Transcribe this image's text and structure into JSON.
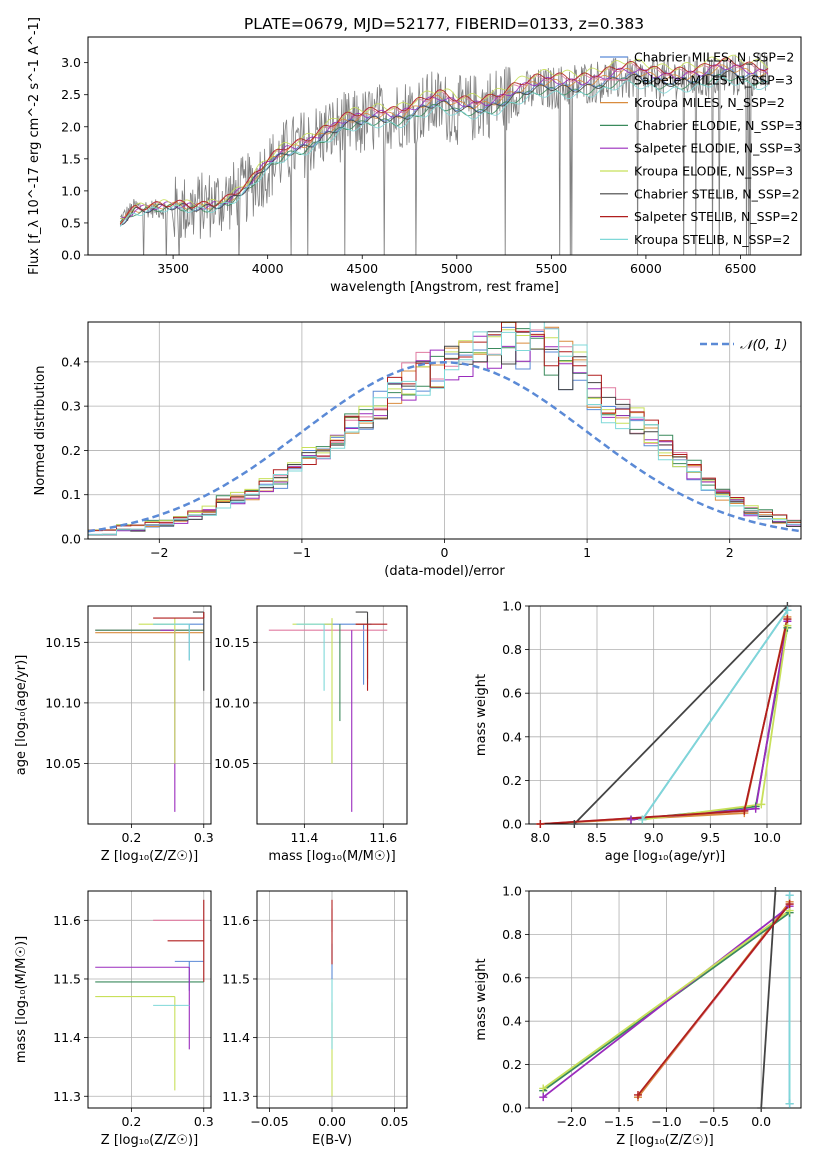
{
  "figure": {
    "title": "PLATE=0679, MJD=52177, FIBERID=0133, z=0.383"
  },
  "colors": {
    "Chabrier MILES": "#5b8ad6",
    "Salpeter MILES": "#e07ba0",
    "Kroupa MILES": "#d98c3e",
    "Chabrier ELODIE": "#3a8a5c",
    "Salpeter ELODIE": "#9a2bbd",
    "Kroupa ELODIE": "#c8e05a",
    "Chabrier STELIB": "#444444",
    "Salpeter STELIB": "#b01e1e",
    "Kroupa STELIB": "#7fd8d8",
    "data": "#808080"
  },
  "chart_data": [
    {
      "type": "line",
      "panel": "spectrum",
      "title": "PLATE=0679, MJD=52177, FIBERID=0133, z=0.383",
      "xlabel": "wavelength [Angstrom, rest frame]",
      "ylabel": "Flux [f_λ 10^-17 erg cm^-2 s^-1 A^-1]",
      "xlim": [
        3050,
        6820
      ],
      "ylim": [
        0,
        3.4
      ],
      "xticks": [
        3500,
        4000,
        4500,
        5000,
        5500,
        6000,
        6500
      ],
      "yticks": [
        0.0,
        0.5,
        1.0,
        1.5,
        2.0,
        2.5,
        3.0
      ],
      "grid": false,
      "legend_position": "top-right",
      "x": [
        3220,
        3300,
        3400,
        3500,
        3600,
        3700,
        3800,
        3900,
        4000,
        4100,
        4200,
        4300,
        4400,
        4500,
        4600,
        4700,
        4800,
        4900,
        5000,
        5100,
        5200,
        5300,
        5400,
        5500,
        5600,
        5700,
        5800,
        5900,
        6000,
        6100,
        6200,
        6300,
        6400,
        6500,
        6600,
        6650
      ],
      "model_base": [
        0.55,
        0.75,
        0.72,
        0.7,
        0.72,
        0.8,
        0.9,
        1.05,
        1.35,
        1.6,
        1.75,
        1.9,
        2.0,
        2.05,
        2.15,
        2.2,
        2.3,
        2.35,
        2.25,
        2.3,
        2.4,
        2.5,
        2.55,
        2.6,
        2.65,
        2.7,
        2.72,
        2.75,
        2.72,
        2.75,
        2.78,
        2.75,
        2.8,
        2.8,
        2.82,
        2.8
      ],
      "series": [
        {
          "name": "Chabrier MILES, N_SSP=2",
          "scale": 1.0
        },
        {
          "name": "Salpeter MILES, N_SSP=3",
          "scale": 1.05
        },
        {
          "name": "Kroupa MILES, N_SSP=2",
          "scale": 1.02
        },
        {
          "name": "Chabrier ELODIE, N_SSP=3",
          "scale": 0.97
        },
        {
          "name": "Salpeter ELODIE, N_SSP=3",
          "scale": 1.03
        },
        {
          "name": "Kroupa ELODIE, N_SSP=3",
          "scale": 1.08
        },
        {
          "name": "Chabrier STELIB, N_SSP=2",
          "scale": 0.99
        },
        {
          "name": "Salpeter STELIB, N_SSP=2",
          "scale": 1.06
        },
        {
          "name": "Kroupa STELIB, N_SSP=2",
          "scale": 0.95
        }
      ]
    },
    {
      "type": "bar",
      "panel": "residual-histogram",
      "xlabel": "(data-model)/error",
      "ylabel": "Normed distribution",
      "xlim": [
        -2.5,
        2.5
      ],
      "ylim": [
        0,
        0.49
      ],
      "xticks": [
        -2,
        -1,
        0,
        1,
        2
      ],
      "yticks": [
        0.0,
        0.1,
        0.2,
        0.3,
        0.4
      ],
      "grid": true,
      "legend_position": "top-right",
      "reference_curve": {
        "name": "𝒩(0, 1)",
        "mean": 0,
        "sigma": 1
      },
      "bin_width": 0.1,
      "bin_start": -2.5,
      "typical_values": [
        0.01,
        0.01,
        0.02,
        0.02,
        0.03,
        0.03,
        0.04,
        0.05,
        0.06,
        0.08,
        0.09,
        0.1,
        0.12,
        0.13,
        0.15,
        0.18,
        0.2,
        0.22,
        0.26,
        0.28,
        0.3,
        0.32,
        0.35,
        0.37,
        0.38,
        0.4,
        0.41,
        0.42,
        0.42,
        0.42,
        0.41,
        0.4,
        0.38,
        0.36,
        0.35,
        0.33,
        0.3,
        0.28,
        0.26,
        0.23,
        0.2,
        0.17,
        0.15,
        0.12,
        0.1,
        0.08,
        0.06,
        0.05,
        0.04,
        0.03
      ]
    },
    {
      "type": "scatter",
      "panel": "age-vs-Z",
      "xlabel": "Z [log₁₀(Z/Z☉)]",
      "ylabel": "age  [log₁₀(age/yr)]",
      "xlim": [
        0.14,
        0.31
      ],
      "ylim": [
        10.0,
        10.18
      ],
      "xticks": [
        0.2,
        0.3
      ],
      "yticks": [
        10.05,
        10.1,
        10.15
      ],
      "grid": true,
      "points": [
        {
          "series": "Chabrier MILES",
          "x": 0.28,
          "y": 10.165,
          "xerr": [
            0.05,
            0.02
          ],
          "yerr": [
            0.03,
            0.0
          ]
        },
        {
          "series": "Salpeter MILES",
          "x": 0.3,
          "y": 10.16,
          "xerr": [
            0.15,
            0.0
          ],
          "yerr": [
            0.0,
            0.0
          ]
        },
        {
          "series": "Kroupa MILES",
          "x": 0.3,
          "y": 10.158,
          "xerr": [
            0.15,
            0.0
          ],
          "yerr": [
            0.0,
            0.0
          ]
        },
        {
          "series": "Chabrier ELODIE",
          "x": 0.3,
          "y": 10.16,
          "xerr": [
            0.15,
            0.0
          ],
          "yerr": [
            0.0,
            0.0
          ]
        },
        {
          "series": "Salpeter ELODIE",
          "x": 0.26,
          "y": 10.16,
          "xerr": [
            0.02,
            0.0
          ],
          "yerr": [
            0.15,
            0.0
          ]
        },
        {
          "series": "Kroupa ELODIE",
          "x": 0.26,
          "y": 10.165,
          "xerr": [
            0.05,
            0.0
          ],
          "yerr": [
            0.115,
            0.005
          ]
        },
        {
          "series": "Chabrier STELIB",
          "x": 0.3,
          "y": 10.175,
          "xerr": [
            0.015,
            0.0
          ],
          "yerr": [
            0.065,
            0.0
          ]
        },
        {
          "series": "Salpeter STELIB",
          "x": 0.3,
          "y": 10.17,
          "xerr": [
            0.07,
            0.0
          ],
          "yerr": [
            0.0,
            0.005
          ]
        },
        {
          "series": "Kroupa STELIB",
          "x": 0.28,
          "y": 10.165,
          "xerr": [
            0.05,
            0.0
          ],
          "yerr": [
            0.03,
            0.0
          ]
        }
      ]
    },
    {
      "type": "scatter",
      "panel": "age-vs-mass",
      "xlabel": "mass [log₁₀(M/M☉)]",
      "ylabel": "",
      "xlim": [
        11.28,
        11.66
      ],
      "ylim": [
        10.0,
        10.18
      ],
      "xticks": [
        11.4,
        11.6
      ],
      "yticks": [
        10.05,
        10.1,
        10.15
      ],
      "grid": true,
      "points": [
        {
          "series": "Chabrier MILES",
          "x": 11.55,
          "y": 10.165,
          "xerr": [
            0.1,
            0.02
          ],
          "yerr": [
            0.05,
            0.0
          ]
        },
        {
          "series": "Salpeter MILES",
          "x": 11.56,
          "y": 10.16,
          "xerr": [
            0.25,
            0.05
          ],
          "yerr": [
            0.0,
            0.0
          ]
        },
        {
          "series": "Kroupa MILES",
          "x": 11.56,
          "y": 10.165,
          "xerr": [
            0.03,
            0.0
          ],
          "yerr": [
            0.05,
            0.005
          ]
        },
        {
          "series": "Chabrier ELODIE",
          "x": 11.49,
          "y": 10.165,
          "xerr": [
            0.0,
            0.0
          ],
          "yerr": [
            0.08,
            0.0
          ]
        },
        {
          "series": "Salpeter ELODIE",
          "x": 11.52,
          "y": 10.16,
          "xerr": [
            0.0,
            0.0
          ],
          "yerr": [
            0.15,
            0.0
          ]
        },
        {
          "series": "Kroupa ELODIE",
          "x": 11.47,
          "y": 10.165,
          "xerr": [
            0.1,
            0.0
          ],
          "yerr": [
            0.115,
            0.005
          ]
        },
        {
          "series": "Chabrier STELIB",
          "x": 11.56,
          "y": 10.175,
          "xerr": [
            0.03,
            0.0
          ],
          "yerr": [
            0.055,
            0.0
          ]
        },
        {
          "series": "Salpeter STELIB",
          "x": 11.56,
          "y": 10.165,
          "xerr": [
            0.03,
            0.05
          ],
          "yerr": [
            0.055,
            0.0
          ]
        },
        {
          "series": "Kroupa STELIB",
          "x": 11.45,
          "y": 10.165,
          "xerr": [
            0.07,
            0.0
          ],
          "yerr": [
            0.055,
            0.0
          ]
        }
      ]
    },
    {
      "type": "line",
      "panel": "mass-weight-vs-age",
      "xlabel": "age  [log₁₀(age/yr)]",
      "ylabel": "mass weight",
      "xlim": [
        7.9,
        10.3
      ],
      "ylim": [
        0.0,
        1.0
      ],
      "xticks": [
        8.0,
        8.5,
        9.0,
        9.5,
        10.0
      ],
      "yticks": [
        0.0,
        0.2,
        0.4,
        0.6,
        0.8,
        1.0
      ],
      "grid": true,
      "series": [
        {
          "name": "Chabrier MILES",
          "x": [
            8.9,
            10.18
          ],
          "y": [
            0.02,
            0.98
          ]
        },
        {
          "name": "Salpeter MILES",
          "x": [
            8.0,
            9.8,
            10.18
          ],
          "y": [
            0.0,
            0.06,
            0.94
          ]
        },
        {
          "name": "Kroupa MILES",
          "x": [
            8.0,
            9.8,
            10.18
          ],
          "y": [
            0.0,
            0.05,
            0.95
          ]
        },
        {
          "name": "Chabrier ELODIE",
          "x": [
            8.8,
            9.9,
            10.18
          ],
          "y": [
            0.02,
            0.08,
            0.9
          ]
        },
        {
          "name": "Salpeter ELODIE",
          "x": [
            8.8,
            9.9,
            10.18
          ],
          "y": [
            0.02,
            0.07,
            0.93
          ]
        },
        {
          "name": "Kroupa ELODIE",
          "x": [
            8.9,
            9.95,
            10.18
          ],
          "y": [
            0.02,
            0.09,
            0.91
          ]
        },
        {
          "name": "Chabrier STELIB",
          "x": [
            8.3,
            10.18
          ],
          "y": [
            0.0,
            1.0
          ]
        },
        {
          "name": "Salpeter STELIB",
          "x": [
            8.0,
            9.8,
            10.18
          ],
          "y": [
            0.0,
            0.06,
            0.94
          ]
        },
        {
          "name": "Kroupa STELIB",
          "x": [
            8.9,
            10.18
          ],
          "y": [
            0.02,
            0.98
          ]
        }
      ]
    },
    {
      "type": "scatter",
      "panel": "mass-vs-Z",
      "xlabel": "Z [log₁₀(Z/Z☉)]",
      "ylabel": "mass [log₁₀(M/M☉)]",
      "xlim": [
        0.14,
        0.31
      ],
      "ylim": [
        11.28,
        11.65
      ],
      "xticks": [
        0.2,
        0.3
      ],
      "yticks": [
        11.3,
        11.4,
        11.5,
        11.6
      ],
      "grid": true,
      "points": [
        {
          "series": "Chabrier MILES",
          "x": 0.28,
          "y": 11.53,
          "xerr": [
            0.02,
            0.02
          ],
          "yerr": [
            0.05,
            0.0
          ]
        },
        {
          "series": "Salpeter MILES",
          "x": 0.3,
          "y": 11.6,
          "xerr": [
            0.07,
            0.0
          ],
          "yerr": [
            0.0,
            0.0
          ]
        },
        {
          "series": "Kroupa MILES",
          "x": 0.3,
          "y": 11.51,
          "xerr": [
            0.0,
            0.0
          ],
          "yerr": [
            0.0,
            0.0
          ]
        },
        {
          "series": "Chabrier ELODIE",
          "x": 0.3,
          "y": 11.495,
          "xerr": [
            0.15,
            0.0
          ],
          "yerr": [
            0.0,
            0.0
          ]
        },
        {
          "series": "Salpeter ELODIE",
          "x": 0.28,
          "y": 11.52,
          "xerr": [
            0.13,
            0.0
          ],
          "yerr": [
            0.14,
            0.0
          ]
        },
        {
          "series": "Kroupa ELODIE",
          "x": 0.26,
          "y": 11.47,
          "xerr": [
            0.11,
            0.0
          ],
          "yerr": [
            0.16,
            0.0
          ]
        },
        {
          "series": "Chabrier STELIB",
          "x": 0.3,
          "y": 11.495,
          "xerr": [
            0.0,
            0.0
          ],
          "yerr": [
            0.0,
            0.0
          ]
        },
        {
          "series": "Salpeter STELIB",
          "x": 0.3,
          "y": 11.565,
          "xerr": [
            0.05,
            0.0
          ],
          "yerr": [
            0.07,
            0.07
          ]
        },
        {
          "series": "Kroupa STELIB",
          "x": 0.28,
          "y": 11.455,
          "xerr": [
            0.05,
            0.0
          ],
          "yerr": [
            0.0,
            0.0
          ]
        }
      ]
    },
    {
      "type": "scatter",
      "panel": "mass-vs-EBV",
      "xlabel": "E(B-V)",
      "ylabel": "",
      "xlim": [
        -0.06,
        0.06
      ],
      "ylim": [
        11.28,
        11.65
      ],
      "xticks": [
        -0.05,
        0.0,
        0.05
      ],
      "yticks": [
        11.3,
        11.4,
        11.5,
        11.6
      ],
      "grid": true,
      "points": [
        {
          "series": "Chabrier MILES",
          "x": 0.0,
          "y": 11.53,
          "yerr": [
            0.03,
            0.03
          ]
        },
        {
          "series": "Salpeter MILES",
          "x": 0.0,
          "y": 11.6,
          "yerr": [
            0.02,
            0.02
          ]
        },
        {
          "series": "Kroupa ELODIE",
          "x": 0.0,
          "y": 11.4,
          "yerr": [
            0.1,
            0.06
          ]
        },
        {
          "series": "Kroupa STELIB",
          "x": 0.0,
          "y": 11.45,
          "yerr": [
            0.07,
            0.05
          ]
        },
        {
          "series": "Salpeter STELIB",
          "x": 0.0,
          "y": 11.565,
          "yerr": [
            0.04,
            0.07
          ]
        }
      ]
    },
    {
      "type": "line",
      "panel": "mass-weight-vs-Z",
      "xlabel": "Z [log₁₀(Z/Z☉)]",
      "ylabel": "mass weight",
      "xlim": [
        -2.45,
        0.42
      ],
      "ylim": [
        0.0,
        1.0
      ],
      "xticks": [
        -2.0,
        -1.5,
        -1.0,
        -0.5,
        0.0
      ],
      "yticks": [
        0.0,
        0.2,
        0.4,
        0.6,
        0.8,
        1.0
      ],
      "grid": true,
      "series": [
        {
          "name": "Chabrier MILES",
          "x": [
            0.3,
            0.3
          ],
          "y": [
            0.02,
            0.98
          ]
        },
        {
          "name": "Salpeter MILES",
          "x": [
            -1.3,
            0.3
          ],
          "y": [
            0.05,
            0.94
          ]
        },
        {
          "name": "Kroupa MILES",
          "x": [
            -1.3,
            0.3
          ],
          "y": [
            0.05,
            0.95
          ]
        },
        {
          "name": "Chabrier ELODIE",
          "x": [
            -2.3,
            0.3
          ],
          "y": [
            0.08,
            0.9
          ]
        },
        {
          "name": "Salpeter ELODIE",
          "x": [
            -2.3,
            0.3
          ],
          "y": [
            0.05,
            0.93
          ]
        },
        {
          "name": "Kroupa ELODIE",
          "x": [
            -2.3,
            0.3
          ],
          "y": [
            0.09,
            0.91
          ]
        },
        {
          "name": "Chabrier STELIB",
          "x": [
            0.0,
            0.15
          ],
          "y": [
            0.0,
            1.0
          ]
        },
        {
          "name": "Salpeter STELIB",
          "x": [
            -1.3,
            0.3
          ],
          "y": [
            0.06,
            0.94
          ]
        },
        {
          "name": "Kroupa STELIB",
          "x": [
            0.3,
            0.3
          ],
          "y": [
            0.02,
            0.98
          ]
        }
      ]
    }
  ]
}
